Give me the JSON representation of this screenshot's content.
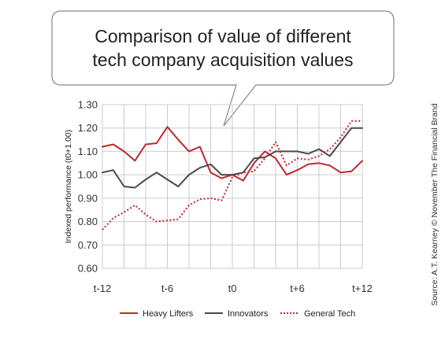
{
  "callout": {
    "line1": "Comparison of value of different",
    "line2": "tech company acquisition values"
  },
  "source_note": "Source: A.T. Kearney © November The Financial Brand",
  "colors": {
    "heavy_lifters": "#c0272d",
    "innovators": "#4a4a4a",
    "general_tech": "#c0272d",
    "grid": "#cccccc"
  },
  "chart_data": {
    "type": "line",
    "title": "Comparison of value of different tech company acquisition values",
    "xlabel": "",
    "ylabel": "Indexed performance (t0+1.00)",
    "x_tick_labels": [
      "t-12",
      "t-6",
      "t0",
      "t+6",
      "t+12"
    ],
    "x": [
      -12,
      -11,
      -10,
      -9,
      -8,
      -7,
      -6,
      -5,
      -4,
      -3,
      -2,
      -1,
      0,
      1,
      2,
      3,
      4,
      5,
      6,
      7,
      8,
      9,
      10,
      11,
      12
    ],
    "xlim": [
      -12,
      12
    ],
    "ylim": [
      0.6,
      1.3
    ],
    "y_ticks": [
      "1.30",
      "1.20",
      "1.10",
      "1.00",
      "0.90",
      "0.80",
      "0.70",
      "0.60"
    ],
    "grid": "both",
    "legend_position": "bottom",
    "series": [
      {
        "name": "Heavy Lifters",
        "style": "solid",
        "values": [
          1.12,
          1.13,
          1.1,
          1.06,
          1.13,
          1.135,
          1.205,
          1.15,
          1.1,
          1.12,
          1.01,
          0.985,
          1.0,
          0.975,
          1.05,
          1.1,
          1.07,
          1.0,
          1.02,
          1.045,
          1.05,
          1.04,
          1.01,
          1.015,
          1.06
        ]
      },
      {
        "name": "Innovators",
        "style": "solid",
        "values": [
          1.01,
          1.02,
          0.95,
          0.945,
          0.98,
          1.01,
          0.98,
          0.95,
          1.0,
          1.03,
          1.045,
          1.0,
          1.0,
          1.01,
          1.07,
          1.075,
          1.1,
          1.1,
          1.1,
          1.09,
          1.11,
          1.08,
          1.14,
          1.2,
          1.2
        ]
      },
      {
        "name": "General Tech",
        "style": "dotted",
        "values": [
          0.765,
          0.815,
          0.84,
          0.87,
          0.83,
          0.8,
          0.805,
          0.81,
          0.87,
          0.895,
          0.9,
          0.89,
          0.99,
          1.01,
          1.015,
          1.07,
          1.14,
          1.04,
          1.07,
          1.065,
          1.08,
          1.11,
          1.16,
          1.23,
          1.23
        ]
      }
    ]
  }
}
